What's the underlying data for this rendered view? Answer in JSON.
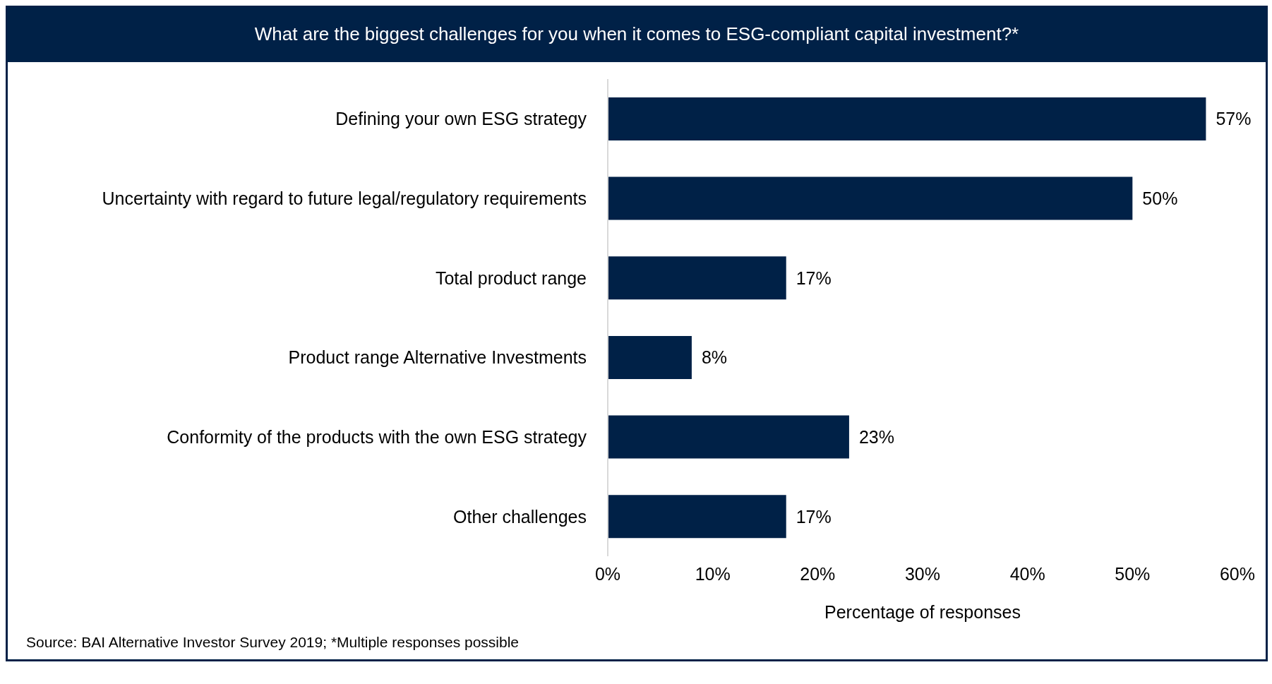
{
  "chart_data": {
    "type": "bar",
    "orientation": "horizontal",
    "title": "What are the biggest challenges for you when it comes to ESG-compliant capital investment?*",
    "xlabel": "Percentage of responses",
    "categories": [
      "Defining your own ESG strategy",
      "Uncertainty with regard to future legal/regulatory requirements",
      "Total product range",
      "Product range Alternative Investments",
      "Conformity of the products with the own ESG strategy",
      "Other challenges"
    ],
    "values": [
      57,
      50,
      17,
      8,
      23,
      17
    ],
    "value_labels": [
      "57%",
      "50%",
      "17%",
      "8%",
      "23%",
      "17%"
    ],
    "color": "#002147",
    "xlim": [
      0,
      60
    ],
    "xticks": [
      {
        "value": 0,
        "label": "0%"
      },
      {
        "value": 10,
        "label": "10%"
      },
      {
        "value": 20,
        "label": "20%"
      },
      {
        "value": 30,
        "label": "30%"
      },
      {
        "value": 40,
        "label": "40%"
      },
      {
        "value": 50,
        "label": "50%"
      },
      {
        "value": 60,
        "label": "60%"
      }
    ],
    "grid": false,
    "legend": false,
    "annotations": [
      "Source: BAI Alternative Investor Survey 2019; *Multiple responses possible"
    ]
  }
}
